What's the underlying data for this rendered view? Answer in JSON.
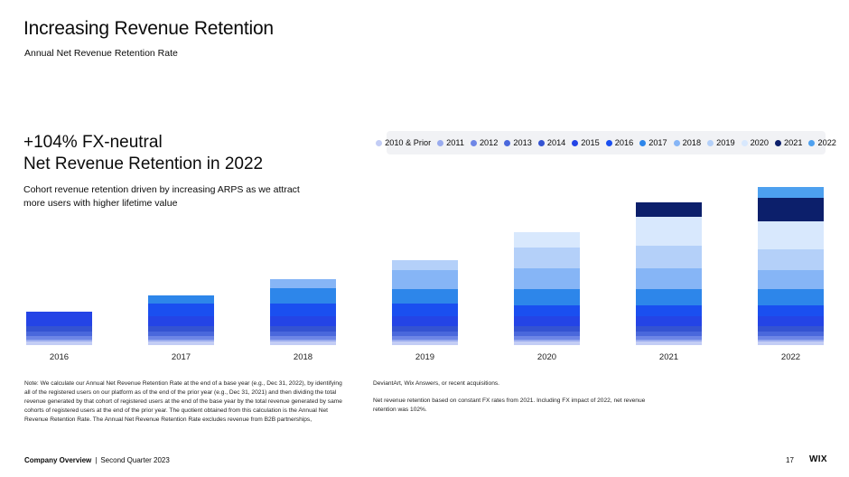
{
  "header": {
    "title": "Increasing Revenue Retention",
    "subtitle": "Annual Net Revenue Retention Rate"
  },
  "headline": {
    "line1": "+104% FX-neutral",
    "line2": "Net Revenue Retention in 2022"
  },
  "description": "Cohort revenue retention driven by increasing ARPS as we attract more users with higher lifetime value",
  "notes": {
    "left": "Note: We calculate our Annual Net Revenue Retention Rate at the end of a base year (e.g., Dec 31, 2022), by identifying all of the registered users on our platform as of the end of the prior year (e.g., Dec 31, 2021) and then dividing the total revenue generated by that cohort of registered users at the end of the base year by the total revenue generated by same cohorts of registered users at the end of the prior year. The quotient obtained from this calculation is the Annual Net Revenue Retention Rate. The Annual Net Revenue Retention Rate excludes revenue from B2B partnerships,",
    "right_1": "DeviantArt, Wix Answers, or recent acquisitions.",
    "right_2": "Net revenue retention based on constant FX rates from 2021. Including FX impact of 2022, net revenue retention was 102%."
  },
  "footer": {
    "section": "Company Overview",
    "separator": "|",
    "period": "Second Quarter 2023",
    "page": "17",
    "logo": "WIX"
  },
  "chart_data": {
    "type": "bar",
    "stacked": true,
    "categories": [
      "2016",
      "2017",
      "2018",
      "2019",
      "2020",
      "2021",
      "2022"
    ],
    "series": [
      {
        "name": "2010 & Prior",
        "color": "#c3cdf5",
        "values": [
          4,
          4,
          4,
          4,
          4,
          4,
          4
        ]
      },
      {
        "name": "2011",
        "color": "#99abee",
        "values": [
          2,
          2,
          2,
          2,
          2,
          2,
          2
        ]
      },
      {
        "name": "2012",
        "color": "#6e86e6",
        "values": [
          4,
          4,
          4,
          4,
          4,
          4,
          4
        ]
      },
      {
        "name": "2013",
        "color": "#4a68dc",
        "values": [
          5,
          5,
          5,
          5,
          5,
          5,
          5
        ]
      },
      {
        "name": "2014",
        "color": "#3453d2",
        "values": [
          6,
          6,
          6,
          6,
          6,
          6,
          6
        ]
      },
      {
        "name": "2015",
        "color": "#2444e6",
        "values": [
          16,
          11,
          11,
          11,
          11,
          11,
          11
        ]
      },
      {
        "name": "2016",
        "color": "#1a4ff0",
        "values": [
          0,
          14,
          14,
          14,
          12,
          12,
          12
        ]
      },
      {
        "name": "2017",
        "color": "#2d86ea",
        "values": [
          0,
          9,
          17,
          16,
          18,
          18,
          18
        ]
      },
      {
        "name": "2018",
        "color": "#86b5f6",
        "values": [
          0,
          0,
          10,
          21,
          23,
          23,
          21
        ]
      },
      {
        "name": "2019",
        "color": "#b4d0f9",
        "values": [
          0,
          0,
          0,
          11,
          23,
          25,
          23
        ]
      },
      {
        "name": "2020",
        "color": "#d8e8fd",
        "values": [
          0,
          0,
          0,
          0,
          17,
          32,
          31
        ]
      },
      {
        "name": "2021",
        "color": "#0c1f6b",
        "values": [
          0,
          0,
          0,
          0,
          0,
          16,
          26
        ]
      },
      {
        "name": "2022",
        "color": "#4da0ef",
        "values": [
          0,
          0,
          0,
          0,
          0,
          0,
          12
        ]
      }
    ],
    "ylim": [
      0,
      184
    ],
    "legend_position": "top",
    "grid": false
  }
}
